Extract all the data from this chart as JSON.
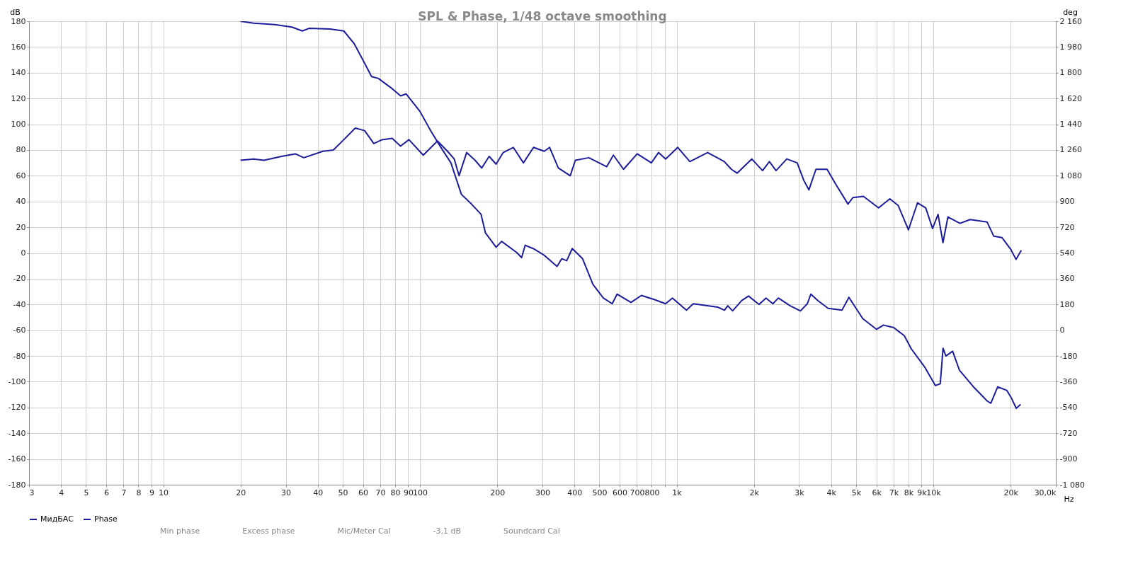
{
  "chart_data": {
    "type": "line",
    "title": "SPL & Phase, 1/48 octave smoothing",
    "xlabel": "Hz",
    "ylabel": "dB",
    "y2label": "deg",
    "log": "x",
    "grid": true,
    "legend": "bottom",
    "line_style": "solid",
    "marker": "none",
    "xlim": [
      3,
      30000
    ],
    "xticks": [
      3,
      4,
      5,
      6,
      7,
      8,
      9,
      10,
      20,
      30,
      40,
      50,
      60,
      70,
      80,
      90,
      100,
      200,
      300,
      400,
      500,
      600,
      700,
      800,
      {
        "value": 900,
        "label": null
      },
      {
        "value": 1000,
        "label": "1k"
      },
      {
        "value": 2000,
        "label": "2k"
      },
      {
        "value": 3000,
        "label": "3k"
      },
      {
        "value": 4000,
        "label": "4k"
      },
      {
        "value": 5000,
        "label": "5k"
      },
      {
        "value": 6000,
        "label": "6k"
      },
      {
        "value": 7000,
        "label": "7k"
      },
      {
        "value": 8000,
        "label": "8k"
      },
      {
        "value": 9000,
        "label": "9k"
      },
      {
        "value": 10000,
        "label": "10k"
      },
      {
        "value": 20000,
        "label": "20k"
      },
      {
        "value": 30000,
        "label": "30,0k"
      }
    ],
    "ylim": [
      -180,
      180
    ],
    "yticks": [
      -180,
      -160,
      -140,
      -120,
      -100,
      -80,
      -60,
      -40,
      -20,
      0,
      20,
      40,
      60,
      80,
      100,
      120,
      140,
      160,
      180
    ],
    "y2lim": [
      -1080,
      2160
    ],
    "y2ticks": [
      {
        "value": -1080,
        "label": "-1 080"
      },
      -900,
      -720,
      -540,
      -360,
      -180,
      0,
      180,
      360,
      540,
      720,
      900,
      {
        "value": 1080,
        "label": "1 080"
      },
      {
        "value": 1260,
        "label": "1 260"
      },
      {
        "value": 1440,
        "label": "1 440"
      },
      {
        "value": 1620,
        "label": "1 620"
      },
      {
        "value": 1800,
        "label": "1 800"
      },
      {
        "value": 1980,
        "label": "1 980"
      },
      {
        "value": 2160,
        "label": "2 160"
      }
    ],
    "series": [
      {
        "name": "МидБАС",
        "color": "#1c1c9c",
        "x": [
          20,
          22.5,
          24.7,
          28.9,
          32.7,
          35.3,
          41.9,
          46,
          50.5,
          56,
          60.9,
          66.1,
          71.2,
          78,
          84,
          90.6,
          103,
          117,
          128,
          136,
          142,
          152,
          164,
          174,
          186,
          198,
          211,
          231,
          253,
          277,
          305,
          320,
          346,
          385,
          403,
          455,
          534,
          567,
          621,
          702,
          797,
          850,
          906,
          1010,
          1126,
          1320,
          1533,
          1634,
          1720,
          1962,
          2161,
          2298,
          2439,
          2686,
          2948,
          3135,
          3275,
          3488,
          3855,
          4150,
          4650,
          4860,
          5340,
          6120,
          6770,
          7290,
          8000,
          8680,
          9340,
          9930,
          10430,
          10900,
          11400,
          12700,
          13900,
          16200,
          17200,
          18500,
          20000,
          21000,
          22000
        ],
        "values": [
          72,
          73,
          72,
          75,
          77,
          74,
          79,
          80,
          88,
          97,
          95,
          85,
          88,
          89,
          83,
          88,
          76,
          87,
          79,
          73,
          60,
          78,
          72,
          66,
          75,
          69,
          78,
          82,
          70,
          82,
          79,
          82,
          66,
          60,
          72,
          74,
          67,
          76,
          65,
          77,
          70,
          78,
          73,
          82,
          71,
          78,
          71,
          65,
          62,
          73,
          64,
          71,
          64,
          73,
          70,
          56,
          49,
          65,
          65,
          54,
          38,
          43,
          44,
          35,
          42,
          37,
          18,
          39,
          35,
          19,
          30,
          8,
          28,
          23,
          26,
          24,
          13,
          12,
          3,
          -5,
          2
        ]
      },
      {
        "name": "Phase",
        "color": "#1c1c9c",
        "axis": "y2",
        "x": [
          20,
          22.5,
          27.2,
          31.7,
          34.8,
          37,
          44.6,
          50.5,
          55.5,
          60.8,
          64.8,
          68.9,
          78,
          84.1,
          88.3,
          100,
          110,
          120,
          132,
          145,
          159,
          173,
          180,
          198,
          208,
          238,
          249,
          257,
          279,
          306,
          342,
          357,
          373,
          392,
          430,
          472,
          518,
          561,
          586,
          664,
          729,
          825,
          905,
          963,
          1091,
          1161,
          1442,
          1535,
          1582,
          1652,
          1791,
          1905,
          2094,
          2228,
          2371,
          2490,
          2768,
          3036,
          3229,
          3334,
          3548,
          3891,
          4406,
          4690,
          5309,
          6011,
          6393,
          7015,
          7709,
          8199,
          9283,
          10190,
          10640,
          10910,
          11190,
          11890,
          12650,
          14330,
          16220,
          16750,
          17810,
          19320,
          20180,
          21040,
          21870
        ],
        "values": [
          2160,
          2146,
          2137,
          2119,
          2092,
          2110,
          2106,
          2092,
          2002,
          1868,
          1773,
          1760,
          1688,
          1638,
          1652,
          1530,
          1396,
          1285,
          1170,
          950,
          881,
          810,
          680,
          580,
          621,
          544,
          508,
          594,
          567,
          522,
          446,
          500,
          486,
          571,
          500,
          320,
          225,
          185,
          252,
          194,
          243,
          212,
          185,
          225,
          140,
          185,
          162,
          140,
          171,
          135,
          207,
          239,
          180,
          225,
          185,
          225,
          171,
          135,
          185,
          252,
          207,
          153,
          140,
          230,
          81,
          6,
          36,
          18,
          -39,
          -129,
          -261,
          -387,
          -374,
          -126,
          -180,
          -147,
          -281,
          -396,
          -495,
          -510,
          -396,
          -420,
          -477,
          -546,
          -519
        ]
      }
    ],
    "annotations": [
      "Min phase",
      "Excess phase",
      "Mic/Meter Cal",
      "-3,1 dB",
      "Soundcard Cal"
    ]
  }
}
